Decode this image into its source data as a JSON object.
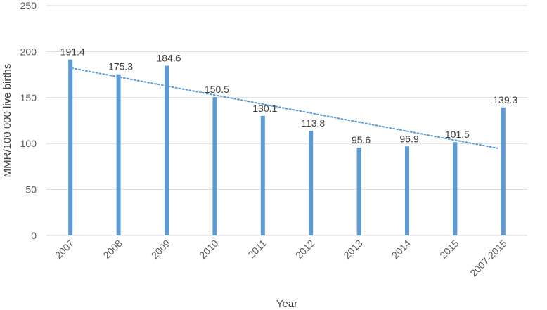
{
  "chart_data": {
    "type": "bar",
    "title": "",
    "xlabel": "Year",
    "ylabel": "MMR/100 000 live births",
    "categories": [
      "2007",
      "2008",
      "2009",
      "2010",
      "2011",
      "2012",
      "2013",
      "2014",
      "2015",
      "2007-2015"
    ],
    "values": [
      191.4,
      175.3,
      184.6,
      150.5,
      130.1,
      113.8,
      95.6,
      96.9,
      101.5,
      139.3
    ],
    "data_labels": [
      "191.4",
      "175.3",
      "184.6",
      "150.5",
      "130.1",
      "113.8",
      "95.6",
      "96.9",
      "101.5",
      "139.3"
    ],
    "ylim": [
      0,
      250
    ],
    "yticks": [
      0,
      50,
      100,
      150,
      200,
      250
    ],
    "ytick_labels": [
      "0",
      "50",
      "100",
      "150",
      "200",
      "250"
    ],
    "grid": true,
    "legend": "none",
    "trendline": {
      "type": "linear",
      "style": "dotted",
      "applies_to_categories": [
        0,
        8
      ],
      "start_value": 182,
      "end_value": 95
    },
    "colors": {
      "bar": "#5B9BD5",
      "trendline": "#5B9BD5",
      "grid": "#D9D9D9"
    }
  }
}
